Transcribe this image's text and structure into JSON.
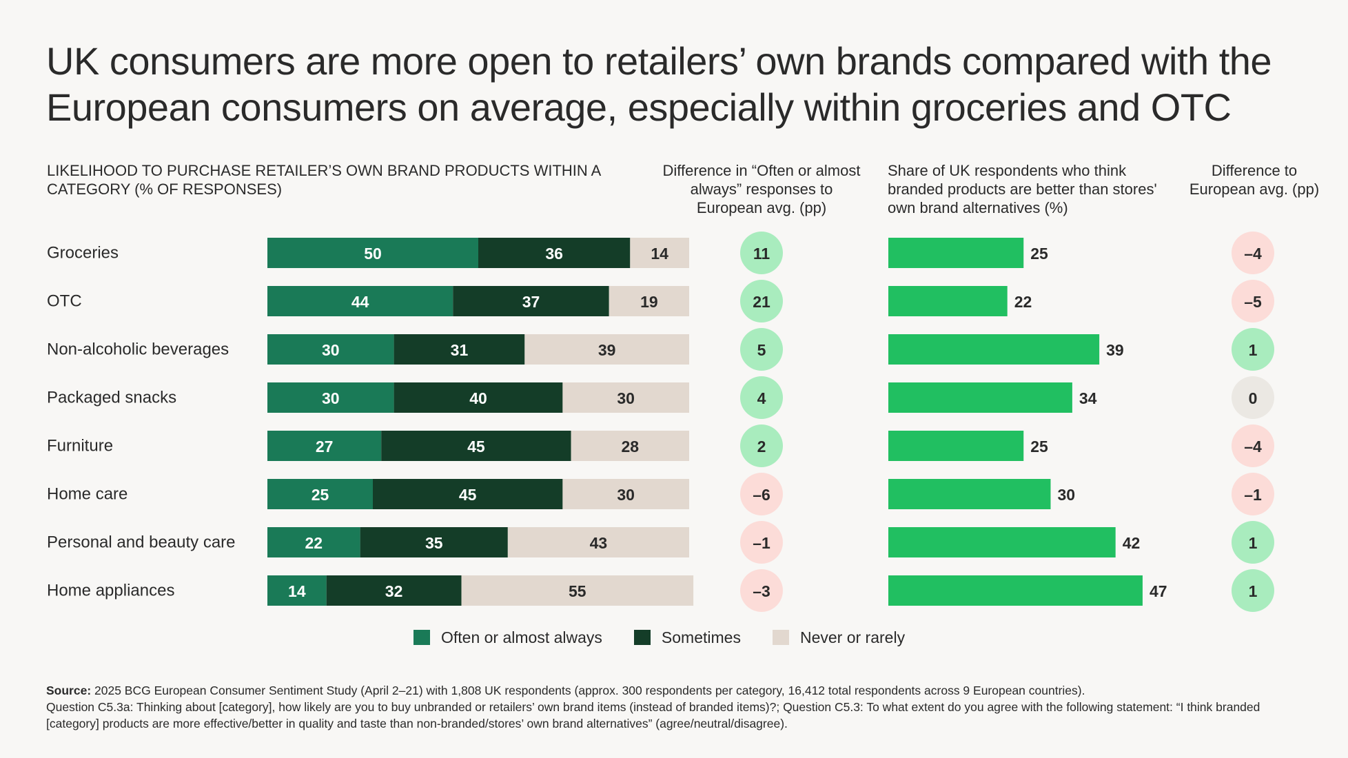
{
  "title": "UK consumers are more open to retailers’ own brands compared with the European consumers on average, especially within groceries and OTC",
  "headers": {
    "main": "LIKELIHOOD TO PURCHASE RETAILER’S OWN BRAND PRODUCTS WITHIN A CATEGORY (% OF RESPONSES)",
    "diff1": "Difference in “Often or almost always” responses to European avg. (pp)",
    "share": "Share of UK respondents who think branded products are better than stores' own brand alternatives (%)",
    "diff2": "Difference to European avg. (pp)"
  },
  "colors": {
    "often": "#1a7a57",
    "sometimes": "#143d28",
    "never": "#e2d8cf",
    "share_bar": "#21bf61",
    "pos_circle": "#a9ecbe",
    "neg_circle": "#fcdcd8",
    "zero_circle": "#ebe8e3"
  },
  "chart_data": {
    "type": "bar",
    "orientation": "horizontal",
    "stacked": true,
    "categories": [
      "Groceries",
      "OTC",
      "Non-alcoholic beverages",
      "Packaged snacks",
      "Furniture",
      "Home care",
      "Personal and beauty care",
      "Home appliances"
    ],
    "series": [
      {
        "name": "Often or almost always",
        "values": [
          50,
          44,
          30,
          30,
          27,
          25,
          22,
          14
        ]
      },
      {
        "name": "Sometimes",
        "values": [
          36,
          37,
          31,
          40,
          45,
          45,
          35,
          32
        ]
      },
      {
        "name": "Never or rarely",
        "values": [
          14,
          19,
          39,
          30,
          28,
          30,
          43,
          55
        ]
      }
    ],
    "diff_often_labels": [
      "11",
      "21",
      "5",
      "4",
      "2",
      "–6",
      "–1",
      "–3"
    ],
    "diff_often_values": [
      11,
      21,
      5,
      4,
      2,
      -6,
      -1,
      -3
    ],
    "share_branded_better": [
      25,
      22,
      39,
      34,
      25,
      30,
      42,
      47
    ],
    "share_xlim": [
      0,
      55
    ],
    "diff_share_labels": [
      "–4",
      "–5",
      "1",
      "0",
      "–4",
      "–1",
      "1",
      "1"
    ],
    "diff_share_values": [
      -4,
      -5,
      1,
      0,
      -4,
      -1,
      1,
      1
    ],
    "legend": [
      "Often or almost always",
      "Sometimes",
      "Never or rarely"
    ]
  },
  "source": {
    "label": "Source:",
    "line1": " 2025 BCG European Consumer Sentiment Study (April 2–21) with 1,808 UK respondents (approx. 300 respondents per category, 16,412 total respondents across 9 European countries).",
    "line2": "Question C5.3a: Thinking about [category], how likely are you to buy unbranded or retailers’ own brand items (instead of branded items)?; Question C5.3: To what extent do you agree with the following statement: “I think branded [category] products are more effective/better in quality and taste than non-branded/stores’ own brand alternatives” (agree/neutral/disagree)."
  }
}
